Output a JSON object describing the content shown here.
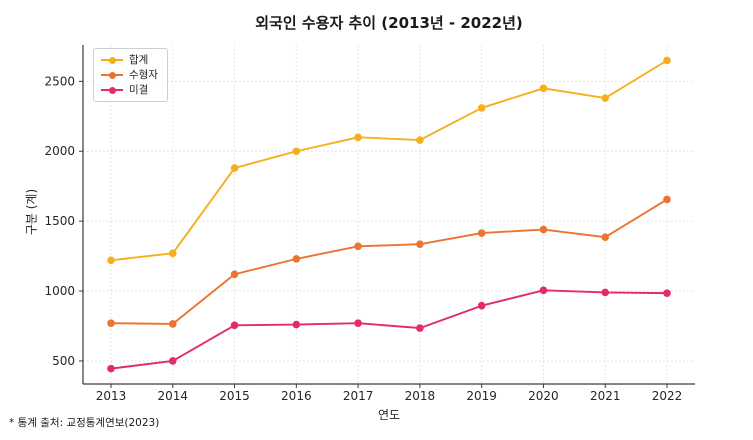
{
  "title": "외국인 수용자 추이 (2013년 - 2022년)",
  "footnote": "* 통계 출처: 교정통계연보(2023)",
  "chart_data": {
    "type": "line",
    "title": "외국인 수용자 추이 (2013년 - 2022년)",
    "xlabel": "연도",
    "ylabel": "구분 (계)",
    "categories": [
      "2013",
      "2014",
      "2015",
      "2016",
      "2017",
      "2018",
      "2019",
      "2020",
      "2021",
      "2022"
    ],
    "series": [
      {
        "name": "합계",
        "color": "#F5AF1D",
        "values": [
          1220,
          1270,
          1880,
          2000,
          2100,
          2080,
          2310,
          2450,
          2380,
          2650
        ]
      },
      {
        "name": "수형자",
        "color": "#EC7430",
        "values": [
          770,
          765,
          1120,
          1230,
          1320,
          1335,
          1415,
          1440,
          1385,
          1655
        ]
      },
      {
        "name": "미결",
        "color": "#E22C62",
        "values": [
          445,
          500,
          755,
          760,
          770,
          735,
          895,
          1005,
          990,
          985
        ]
      }
    ],
    "yticks": [
      500,
      1000,
      1500,
      2000,
      2500
    ],
    "ylim": [
      335,
      2760
    ],
    "grid": true,
    "grid_style": "dotted",
    "grid_color": "#d9d9d9",
    "axis_color": "#3a3a3a",
    "tick_label_color": "#262626",
    "legend_position": "upper-left",
    "marker": "circle"
  }
}
